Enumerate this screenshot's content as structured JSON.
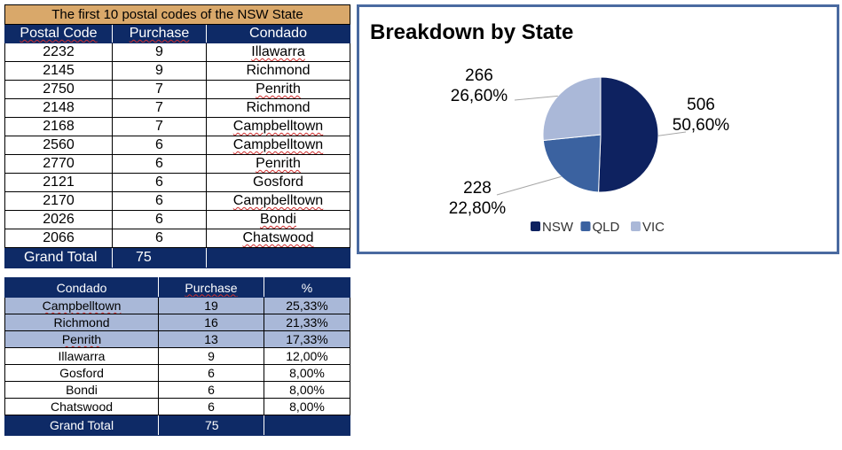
{
  "table1": {
    "title": "The first 10 postal codes of the NSW State",
    "headers": [
      "Postal Code",
      "Purchase",
      "Condado"
    ],
    "rows": [
      [
        "2232",
        "9",
        "Illawarra"
      ],
      [
        "2145",
        "9",
        "Richmond"
      ],
      [
        "2750",
        "7",
        "Penrith"
      ],
      [
        "2148",
        "7",
        "Richmond"
      ],
      [
        "2168",
        "7",
        "Campbelltown"
      ],
      [
        "2560",
        "6",
        "Campbelltown"
      ],
      [
        "2770",
        "6",
        "Penrith"
      ],
      [
        "2121",
        "6",
        "Gosford"
      ],
      [
        "2170",
        "6",
        "Campbelltown"
      ],
      [
        "2026",
        "6",
        "Bondi"
      ],
      [
        "2066",
        "6",
        "Chatswood"
      ]
    ],
    "total_label": "Grand Total",
    "total_value": "75",
    "colors": {
      "title_bg": "#d9a86a",
      "header_bg": "#0e2a66"
    }
  },
  "table2": {
    "headers": [
      "Condado",
      "Purchase",
      "%"
    ],
    "rows": [
      [
        "Campbelltown",
        "19",
        "25,33%"
      ],
      [
        "Richmond",
        "16",
        "21,33%"
      ],
      [
        "Penrith",
        "13",
        "17,33%"
      ],
      [
        "Illawarra",
        "9",
        "12,00%"
      ],
      [
        "Gosford",
        "6",
        "8,00%"
      ],
      [
        "Bondi",
        "6",
        "8,00%"
      ],
      [
        "Chatswood",
        "6",
        "8,00%"
      ]
    ],
    "highlighted_rows": 3,
    "total_label": "Grand Total",
    "total_value": "75",
    "colors": {
      "highlight_bg": "#a9b8d8",
      "header_bg": "#0e2a66"
    }
  },
  "chart_data": {
    "type": "pie",
    "title": "Breakdown by State",
    "series": [
      {
        "name": "NSW",
        "value": 506,
        "label_value": "506",
        "label_percent": "50,60%",
        "color": "#0e2260"
      },
      {
        "name": "QLD",
        "value": 228,
        "label_value": "228",
        "label_percent": "22,80%",
        "color": "#3b62a0"
      },
      {
        "name": "VIC",
        "value": 266,
        "label_value": "266",
        "label_percent": "26,60%",
        "color": "#aab8d8"
      }
    ],
    "legend_position": "bottom"
  }
}
